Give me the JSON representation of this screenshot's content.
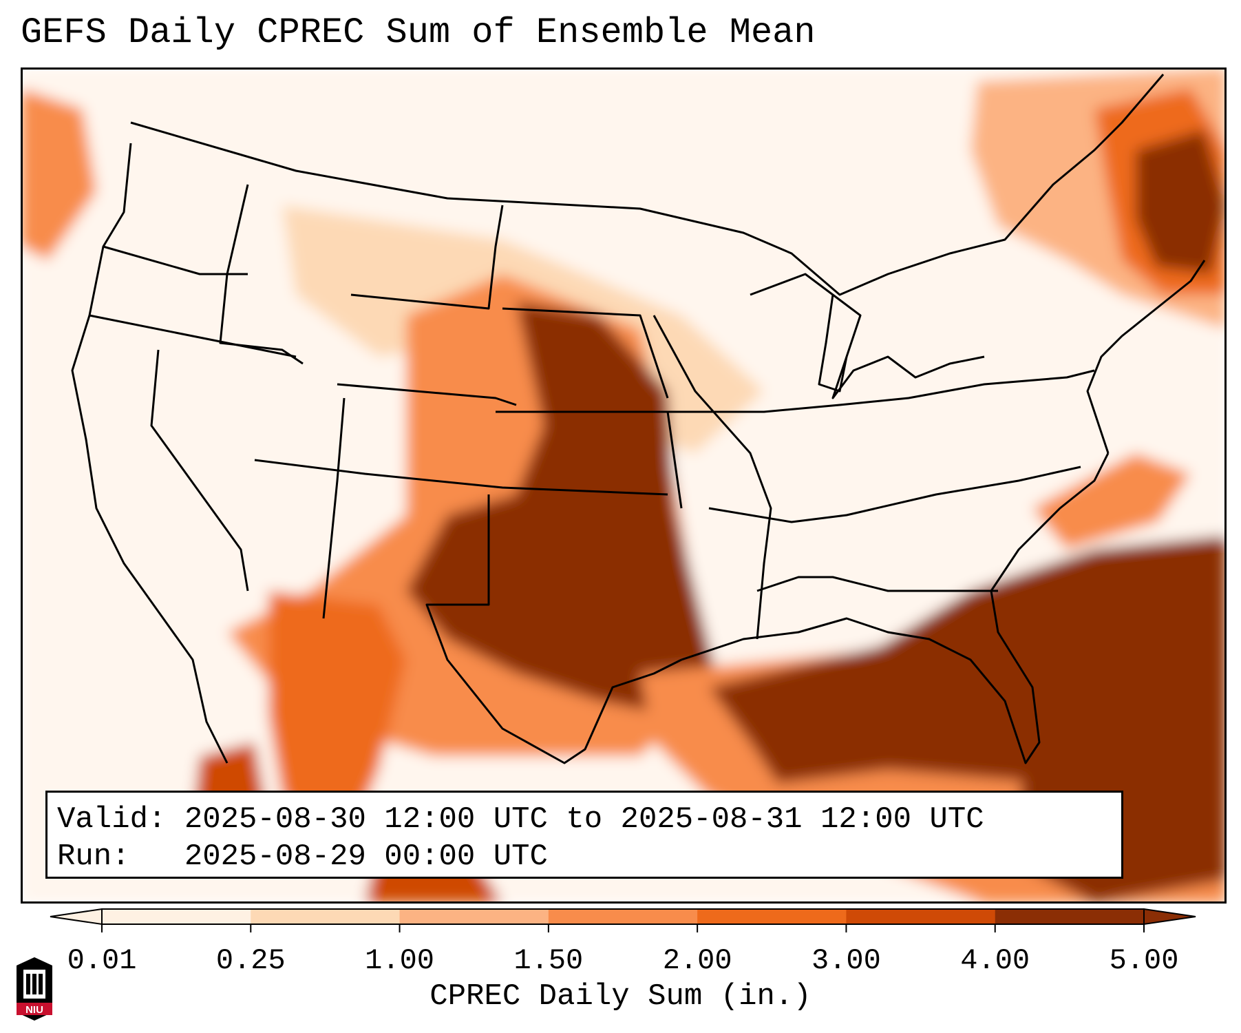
{
  "title": "GEFS Daily CPREC Sum of Ensemble Mean",
  "info": {
    "valid_label": "Valid:",
    "valid_value": "2025-08-30 12:00 UTC to 2025-08-31 12:00 UTC",
    "run_label": "Run:",
    "run_value": "2025-08-29 00:00 UTC"
  },
  "colorbar": {
    "label": "CPREC Daily Sum (in.)",
    "ticks": [
      "0.01",
      "0.25",
      "1.00",
      "1.50",
      "2.00",
      "3.00",
      "4.00",
      "5.00"
    ],
    "colors": [
      "#fef1e3",
      "#fdd9b5",
      "#fcb383",
      "#f88c4b",
      "#ee6a1b",
      "#cf4a06",
      "#8b2e05"
    ],
    "extend": "both"
  },
  "map": {
    "region": "CONUS",
    "precip_palette": {
      "low": "#fef1e3",
      "light": "#fdd9b5",
      "moderate": "#fcb383",
      "medium": "#f88c4b",
      "high": "#ee6a1b",
      "very_high": "#cf4a06",
      "extreme": "#8b2e05"
    }
  },
  "logo": {
    "text": "NIU",
    "color": "#c8102e"
  }
}
